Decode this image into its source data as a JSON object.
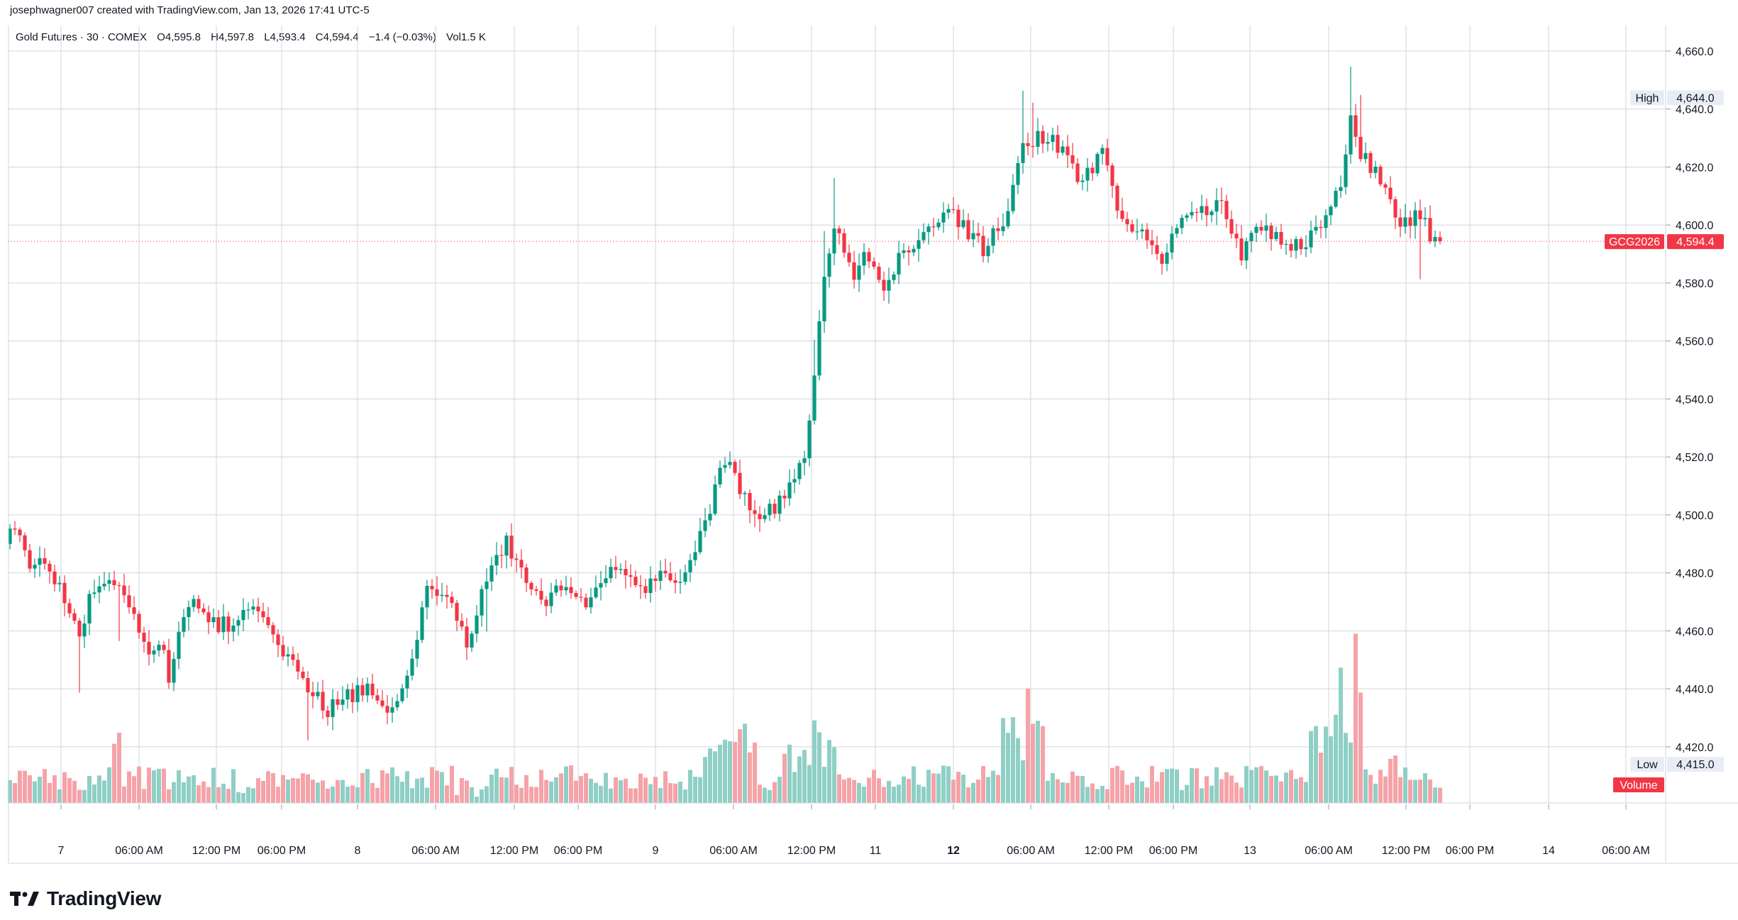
{
  "header": {
    "credit": "josephwagner007 created with TradingView.com, Jan 13, 2026 17:41 UTC-5",
    "symbol": "Gold Futures · 30 · COMEX",
    "open": "O4,595.8",
    "high": "H4,597.8",
    "low": "L4,593.4",
    "close": "C4,594.4",
    "change": "−1.4 (−0.03%)",
    "volume": "Vol1.5 K"
  },
  "brand": {
    "name": "TradingView"
  },
  "colors": {
    "up": "#089981",
    "down": "#f23645",
    "volume_up": "#8fcfc6",
    "volume_down": "#f5a3a9",
    "grid": "#d1d4dc",
    "text": "#131722",
    "high_bg": "#e8edf5",
    "last_price": "#f23645"
  },
  "chart_data": {
    "type": "candlestick",
    "interval": "30",
    "price_axis": {
      "ticks": [
        "4,660.0",
        "4,640.0",
        "4,620.0",
        "4,600.0",
        "4,580.0",
        "4,560.0",
        "4,540.0",
        "4,520.0",
        "4,500.0",
        "4,480.0",
        "4,460.0",
        "4,440.0",
        "4,420.0"
      ],
      "range": [
        4400,
        4665
      ]
    },
    "time_axis": [
      {
        "label": "7",
        "bold": false
      },
      {
        "label": "06:00 AM",
        "bold": false
      },
      {
        "label": "12:00 PM",
        "bold": false
      },
      {
        "label": "06:00 PM",
        "bold": false
      },
      {
        "label": "8",
        "bold": false
      },
      {
        "label": "06:00 AM",
        "bold": false
      },
      {
        "label": "12:00 PM",
        "bold": false
      },
      {
        "label": "06:00 PM",
        "bold": false
      },
      {
        "label": "9",
        "bold": false
      },
      {
        "label": "06:00 AM",
        "bold": false
      },
      {
        "label": "12:00 PM",
        "bold": false
      },
      {
        "label": "11",
        "bold": false
      },
      {
        "label": "12",
        "bold": true
      },
      {
        "label": "06:00 AM",
        "bold": false
      },
      {
        "label": "12:00 PM",
        "bold": false
      },
      {
        "label": "06:00 PM",
        "bold": false
      },
      {
        "label": "13",
        "bold": false
      },
      {
        "label": "06:00 AM",
        "bold": false
      },
      {
        "label": "12:00 PM",
        "bold": false
      },
      {
        "label": "06:00 PM",
        "bold": false
      },
      {
        "label": "14",
        "bold": false
      },
      {
        "label": "06:00 AM",
        "bold": false
      }
    ],
    "markers": {
      "high": {
        "label": "High",
        "value": "4,644.0"
      },
      "low": {
        "label": "Low",
        "value": "4,415.0"
      },
      "last": {
        "label": "GCG2026",
        "value": "4,594.4"
      },
      "volume_label": "Volume"
    },
    "anchors": [
      [
        0,
        4496
      ],
      [
        4,
        4484
      ],
      [
        6,
        4486
      ],
      [
        10,
        4475
      ],
      [
        14,
        4460
      ],
      [
        16,
        4470
      ],
      [
        20,
        4478
      ],
      [
        24,
        4470
      ],
      [
        28,
        4452
      ],
      [
        30,
        4458
      ],
      [
        32,
        4445
      ],
      [
        36,
        4470
      ],
      [
        40,
        4463
      ],
      [
        44,
        4462
      ],
      [
        48,
        4470
      ],
      [
        52,
        4460
      ],
      [
        56,
        4450
      ],
      [
        60,
        4440
      ],
      [
        64,
        4433
      ],
      [
        68,
        4437
      ],
      [
        72,
        4440
      ],
      [
        76,
        4432
      ],
      [
        80,
        4442
      ],
      [
        84,
        4475
      ],
      [
        88,
        4473
      ],
      [
        92,
        4456
      ],
      [
        96,
        4478
      ],
      [
        100,
        4491
      ],
      [
        104,
        4478
      ],
      [
        108,
        4470
      ],
      [
        112,
        4476
      ],
      [
        116,
        4470
      ],
      [
        120,
        4480
      ],
      [
        124,
        4480
      ],
      [
        128,
        4476
      ],
      [
        132,
        4480
      ],
      [
        136,
        4478
      ],
      [
        140,
        4497
      ],
      [
        144,
        4520
      ],
      [
        148,
        4505
      ],
      [
        152,
        4500
      ],
      [
        156,
        4505
      ],
      [
        160,
        4519
      ],
      [
        162,
        4550
      ],
      [
        164,
        4580
      ],
      [
        166,
        4600
      ],
      [
        170,
        4582
      ],
      [
        172,
        4590
      ],
      [
        176,
        4580
      ],
      [
        180,
        4590
      ],
      [
        184,
        4595
      ],
      [
        188,
        4605
      ],
      [
        192,
        4600
      ],
      [
        196,
        4592
      ],
      [
        200,
        4600
      ],
      [
        204,
        4627
      ],
      [
        208,
        4631
      ],
      [
        212,
        4626
      ],
      [
        216,
        4615
      ],
      [
        220,
        4625
      ],
      [
        224,
        4600
      ],
      [
        228,
        4597
      ],
      [
        232,
        4588
      ],
      [
        236,
        4602
      ],
      [
        240,
        4604
      ],
      [
        244,
        4607
      ],
      [
        248,
        4590
      ],
      [
        252,
        4600
      ],
      [
        256,
        4596
      ],
      [
        260,
        4592
      ],
      [
        264,
        4600
      ],
      [
        268,
        4615
      ],
      [
        270,
        4635
      ],
      [
        272,
        4625
      ],
      [
        276,
        4616
      ],
      [
        280,
        4600
      ],
      [
        284,
        4604
      ],
      [
        286,
        4596
      ],
      [
        288,
        4594
      ]
    ],
    "spikes": {
      "14": "down",
      "22": "down",
      "60": "down",
      "96": "down",
      "162": "up",
      "164": "up",
      "166": "up",
      "204": "up",
      "206": "up",
      "270": "up",
      "272": "up",
      "284": "down"
    },
    "volume_hot": [
      [
        20,
        22,
        1.8
      ],
      [
        44,
        50,
        0.9
      ],
      [
        90,
        96,
        0.6
      ],
      [
        140,
        150,
        2.8
      ],
      [
        156,
        160,
        1.6
      ],
      [
        160,
        166,
        2.2
      ],
      [
        200,
        208,
        3.2
      ],
      [
        262,
        272,
        3.6
      ],
      [
        276,
        280,
        1.8
      ]
    ]
  }
}
